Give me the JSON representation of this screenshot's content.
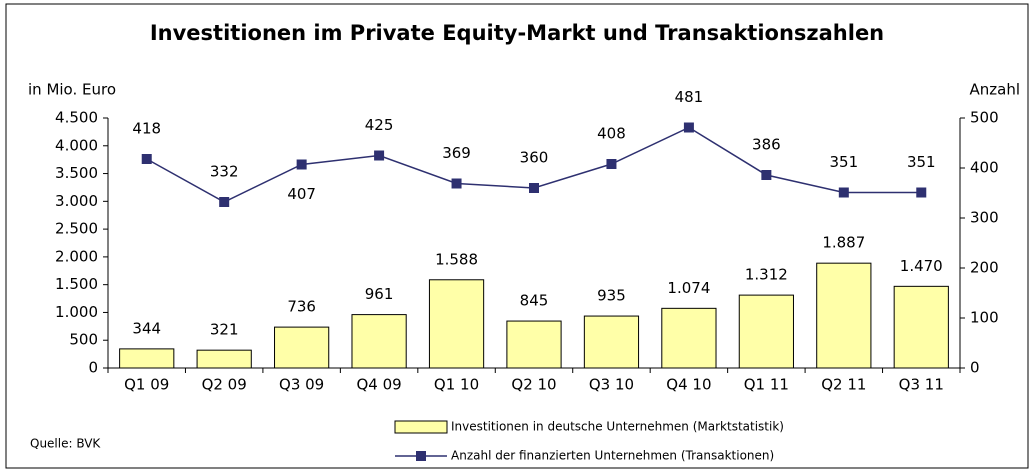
{
  "chart_data": {
    "type": "bar",
    "title": "Investitionen im Private Equity-Markt und Transaktionszahlen",
    "y_label": "in Mio. Euro",
    "y2_label": "Anzahl",
    "source": "Quelle: BVK",
    "categories": [
      "Q1 09",
      "Q2 09",
      "Q3 09",
      "Q4 09",
      "Q1 10",
      "Q2 10",
      "Q3 10",
      "Q4 10",
      "Q1 11",
      "Q2 11",
      "Q3 11"
    ],
    "series": [
      {
        "name": "Investitionen in deutsche Unternehmen (Marktstatistik)",
        "type": "bar",
        "color": "#ffffa8",
        "values": [
          344,
          321,
          736,
          961,
          1588,
          845,
          935,
          1074,
          1312,
          1887,
          1470
        ],
        "value_labels": [
          "344",
          "321",
          "736",
          "961",
          "1.588",
          "845",
          "935",
          "1.074",
          "1.312",
          "1.887",
          "1.470"
        ]
      },
      {
        "name": "Anzahl der finanzierten Unternehmen (Transaktionen)",
        "type": "line",
        "axis": "y2",
        "color": "#2e3070",
        "values": [
          418,
          332,
          407,
          425,
          369,
          360,
          408,
          481,
          386,
          351,
          351
        ]
      }
    ],
    "ylim": [
      0,
      4500
    ],
    "yticks": [
      0,
      500,
      {
        "value": 1000,
        "label": "1.000"
      },
      {
        "value": 1500,
        "label": "1.500"
      },
      {
        "value": 2000,
        "label": "2.000"
      },
      {
        "value": 2500,
        "label": "2.500"
      },
      {
        "value": 3000,
        "label": "3.000"
      },
      {
        "value": 3500,
        "label": "3.500"
      },
      {
        "value": 4000,
        "label": "4.000"
      },
      {
        "value": 4500,
        "label": "4.500"
      }
    ],
    "y2lim": [
      0,
      500
    ],
    "y2ticks": [
      0,
      100,
      200,
      300,
      400,
      500
    ],
    "grid": false
  }
}
